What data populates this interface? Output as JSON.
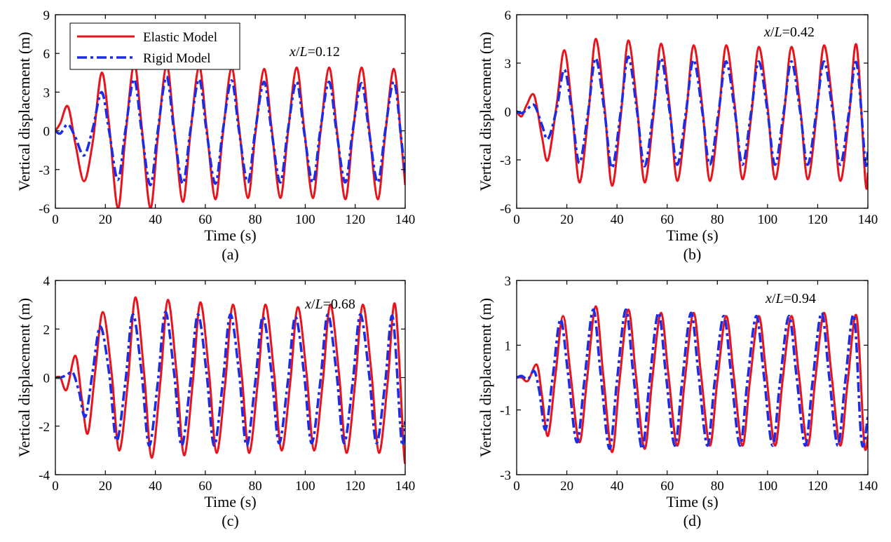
{
  "chart_data": [
    {
      "type": "line",
      "panel_label": "(a)",
      "annotation": {
        "var": "x",
        "slash": "/",
        "ref": "L",
        "value": "=0.12"
      },
      "xlabel": "Time (s)",
      "ylabel": "Vertical displacement (m)",
      "xlim": [
        0,
        140
      ],
      "ylim": [
        -6,
        9
      ],
      "xticks": [
        0,
        20,
        40,
        60,
        80,
        100,
        120,
        140
      ],
      "yticks": [
        -6,
        -3,
        0,
        3,
        6,
        9
      ],
      "legend": {
        "placement": "top-left",
        "entries": [
          "Elastic Model",
          "Rigid Model"
        ]
      },
      "series": [
        {
          "name": "Elastic Model",
          "color": "#e8141b",
          "dash": "solid",
          "x": [
            0,
            2,
            5,
            8,
            11.5,
            15,
            18.5,
            21.5,
            25,
            28,
            31.5,
            34.5,
            38,
            41,
            44.5,
            47.5,
            51,
            54,
            57.5,
            60.5,
            64,
            67,
            70.5,
            73.5,
            77,
            80,
            83.5,
            86.5,
            90,
            93,
            96.5,
            99.5,
            103,
            106,
            109.5,
            112.5,
            116,
            119,
            122.5,
            125.5,
            129,
            132,
            135.5,
            138.5,
            140
          ],
          "y": [
            0,
            0.6,
            1.9,
            -1.0,
            -3.9,
            -0.8,
            4.5,
            0.5,
            -6.0,
            -0.5,
            5.2,
            0.4,
            -6.0,
            -0.5,
            5.1,
            0.3,
            -5.5,
            -0.3,
            5.0,
            0.3,
            -5.3,
            -0.3,
            4.9,
            0.3,
            -5.2,
            -0.3,
            4.8,
            0.3,
            -5.2,
            -0.3,
            4.9,
            0.3,
            -5.2,
            -0.3,
            4.9,
            0.3,
            -5.3,
            -0.3,
            4.9,
            0.3,
            -5.3,
            -0.3,
            4.8,
            -1.0,
            -4.2
          ]
        },
        {
          "name": "Rigid Model",
          "color": "#1b2de6",
          "dash": "dashdot",
          "x": [
            0,
            2,
            5,
            8,
            11.5,
            15,
            18.5,
            21.5,
            25,
            28,
            31.5,
            34.5,
            38,
            41,
            44.5,
            47.5,
            51,
            54,
            57.5,
            60.5,
            64,
            67,
            70.5,
            73.5,
            77,
            80,
            83.5,
            86.5,
            90,
            93,
            96.5,
            99.5,
            103,
            106,
            109.5,
            112.5,
            116,
            119,
            122.5,
            125.5,
            129,
            132,
            135.5,
            138.5,
            140
          ],
          "y": [
            0,
            -0.2,
            0.5,
            -0.5,
            -1.9,
            0.2,
            3.0,
            0.0,
            -3.8,
            0.0,
            4.0,
            0.0,
            -4.2,
            0.0,
            4.2,
            0.0,
            -4.1,
            0.0,
            4.0,
            0.0,
            -4.1,
            0.0,
            3.9,
            0.0,
            -4.0,
            0.0,
            3.8,
            0.0,
            -4.0,
            0.0,
            3.8,
            0.0,
            -4.0,
            0.0,
            3.8,
            0.0,
            -4.0,
            0.0,
            3.7,
            0.0,
            -4.0,
            0.0,
            3.8,
            -0.8,
            -3.3
          ]
        }
      ]
    },
    {
      "type": "line",
      "panel_label": "(b)",
      "annotation": {
        "var": "x",
        "slash": "/",
        "ref": "L",
        "value": "=0.42"
      },
      "xlabel": "Time (s)",
      "ylabel": "Vertical displacement (m)",
      "xlim": [
        0,
        140
      ],
      "ylim": [
        -6,
        6
      ],
      "xticks": [
        0,
        20,
        40,
        60,
        80,
        100,
        120,
        140
      ],
      "yticks": [
        -6,
        -3,
        0,
        3,
        6
      ],
      "series": [
        {
          "name": "Elastic Model",
          "color": "#e8141b",
          "dash": "solid",
          "x": [
            0,
            2,
            4,
            7,
            10,
            12.5,
            16,
            19,
            22,
            25,
            28.5,
            31.5,
            35,
            38,
            41.5,
            44.5,
            48,
            51,
            54.5,
            57.5,
            61,
            64,
            67.5,
            70.5,
            74,
            77,
            80.5,
            83.5,
            87,
            90,
            93.5,
            96.5,
            100,
            103,
            106.5,
            109.5,
            113,
            116,
            119.5,
            122.5,
            126,
            129,
            132.5,
            135.5,
            139,
            140
          ],
          "y": [
            0,
            -0.3,
            0.4,
            1.0,
            -1.5,
            -3.0,
            0.5,
            3.8,
            0.3,
            -4.4,
            -0.3,
            4.5,
            0.3,
            -4.6,
            -0.3,
            4.4,
            0.3,
            -4.4,
            -0.3,
            4.2,
            0.3,
            -4.3,
            -0.3,
            4.1,
            0.3,
            -4.3,
            -0.3,
            4.1,
            0.3,
            -4.2,
            -0.3,
            4.0,
            0.3,
            -4.2,
            -0.3,
            4.0,
            0.3,
            -4.2,
            -0.3,
            4.1,
            0.3,
            -4.3,
            -0.3,
            4.1,
            -4.3,
            -3.8
          ]
        },
        {
          "name": "Rigid Model",
          "color": "#1b2de6",
          "dash": "dashdot",
          "x": [
            0,
            2,
            4,
            7,
            10,
            12.5,
            16,
            19,
            22,
            25,
            28.5,
            31.5,
            35,
            38,
            41.5,
            44.5,
            48,
            51,
            54.5,
            57.5,
            61,
            64,
            67.5,
            70.5,
            74,
            77,
            80.5,
            83.5,
            87,
            90,
            93.5,
            96.5,
            100,
            103,
            106.5,
            109.5,
            113,
            116,
            119.5,
            122.5,
            126,
            129,
            132.5,
            135.5,
            139,
            140
          ],
          "y": [
            0,
            -0.1,
            0.1,
            0.4,
            -0.8,
            -1.7,
            0.2,
            2.6,
            0.0,
            -3.2,
            0.0,
            3.3,
            0.0,
            -3.5,
            0.0,
            3.4,
            0.0,
            -3.4,
            0.0,
            3.3,
            0.0,
            -3.3,
            0.0,
            3.2,
            0.0,
            -3.3,
            0.0,
            3.1,
            0.0,
            -3.3,
            0.0,
            3.1,
            0.0,
            -3.3,
            0.0,
            3.1,
            0.0,
            -3.3,
            0.0,
            3.1,
            0.0,
            -3.3,
            0.0,
            3.0,
            -3.2,
            -2.5
          ]
        }
      ]
    },
    {
      "type": "line",
      "panel_label": "(c)",
      "annotation": {
        "var": "x",
        "slash": "/",
        "ref": "L",
        "value": "=0.68"
      },
      "xlabel": "Time (s)",
      "ylabel": "Vertical displacement (m)",
      "xlim": [
        0,
        140
      ],
      "ylim": [
        -4,
        4
      ],
      "xticks": [
        0,
        20,
        40,
        60,
        80,
        100,
        120,
        140
      ],
      "yticks": [
        -4,
        -2,
        0,
        2,
        4
      ],
      "series": [
        {
          "name": "Elastic Model",
          "color": "#e8141b",
          "dash": "solid",
          "x": [
            0,
            2,
            4.5,
            8,
            10.5,
            13,
            16,
            19,
            22.5,
            25.5,
            29,
            32,
            35.5,
            38.5,
            42,
            45,
            48.5,
            51.5,
            55,
            58,
            61.5,
            64.5,
            68,
            71,
            74.5,
            77.5,
            81,
            84,
            87.5,
            90.5,
            94,
            97,
            100.5,
            103.5,
            107,
            110,
            113.5,
            116.5,
            120,
            123,
            126.5,
            129.5,
            133,
            136,
            139.5,
            140
          ],
          "y": [
            0,
            0,
            -0.5,
            0.9,
            -0.8,
            -2.3,
            0.3,
            2.7,
            0.2,
            -3.0,
            -0.2,
            3.3,
            0.2,
            -3.3,
            -0.2,
            3.2,
            0.2,
            -3.2,
            -0.2,
            3.1,
            0.2,
            -3.1,
            -0.2,
            3.0,
            0.2,
            -3.1,
            -0.2,
            3.0,
            0.2,
            -3.0,
            -0.2,
            2.9,
            0.2,
            -3.0,
            -0.2,
            3.0,
            0.2,
            -3.1,
            -0.2,
            3.0,
            0.2,
            -3.1,
            -0.2,
            3.0,
            -3.1,
            -3.0
          ]
        },
        {
          "name": "Rigid Model",
          "color": "#1b2de6",
          "dash": "dashdot",
          "x": [
            0,
            2,
            4.5,
            7,
            9.5,
            12,
            15,
            18,
            21.5,
            24.5,
            28,
            31,
            34.5,
            37.5,
            41,
            44,
            47.5,
            50.5,
            54,
            57,
            60.5,
            63.5,
            67,
            70,
            73.5,
            76.5,
            80,
            83,
            86.5,
            89.5,
            93,
            96,
            99.5,
            102.5,
            106,
            109,
            112.5,
            115.5,
            119,
            122,
            125.5,
            128.5,
            132,
            135,
            138.5,
            140
          ],
          "y": [
            0,
            0,
            0.1,
            0.2,
            -0.6,
            -1.6,
            0.3,
            2.1,
            0.2,
            -2.6,
            -0.2,
            2.6,
            0.2,
            -2.8,
            -0.2,
            2.7,
            0.2,
            -2.8,
            -0.2,
            2.6,
            0.2,
            -2.8,
            -0.2,
            2.6,
            0.2,
            -2.8,
            -0.2,
            2.5,
            0.2,
            -2.7,
            -0.2,
            2.5,
            0.2,
            -2.7,
            -0.2,
            2.6,
            0.2,
            -2.7,
            -0.2,
            2.6,
            0.2,
            -2.7,
            -0.2,
            2.5,
            -2.6,
            -1.8
          ]
        }
      ]
    },
    {
      "type": "line",
      "panel_label": "(d)",
      "annotation": {
        "var": "x",
        "slash": "/",
        "ref": "L",
        "value": "=0.94"
      },
      "xlabel": "Time (s)",
      "ylabel": "Vertical displacement (m)",
      "xlim": [
        0,
        140
      ],
      "ylim": [
        -3,
        3
      ],
      "xticks": [
        0,
        20,
        40,
        60,
        80,
        100,
        120,
        140
      ],
      "yticks": [
        -3,
        -1,
        1,
        3
      ],
      "series": [
        {
          "name": "Elastic Model",
          "color": "#e8141b",
          "dash": "solid",
          "x": [
            0,
            2,
            4.5,
            8,
            10,
            12.5,
            15.5,
            18.5,
            21.5,
            25,
            28,
            31.5,
            34.5,
            38,
            41,
            44.5,
            47.5,
            51,
            54,
            57.5,
            60.5,
            64,
            67,
            70.5,
            73.5,
            77,
            80,
            83.5,
            86.5,
            90,
            93,
            96.5,
            99.5,
            103,
            106,
            109.5,
            112.5,
            116,
            119,
            122.5,
            125.5,
            129,
            132,
            135.5,
            138.5,
            140
          ],
          "y": [
            0,
            0,
            -0.1,
            0.4,
            -0.5,
            -1.8,
            0.1,
            1.9,
            0.1,
            -2.0,
            -0.1,
            2.2,
            0.1,
            -2.3,
            -0.1,
            2.1,
            0.1,
            -2.2,
            -0.1,
            2.0,
            0.1,
            -2.1,
            -0.1,
            2.0,
            0.1,
            -2.1,
            -0.1,
            1.9,
            0.1,
            -2.1,
            -0.1,
            1.9,
            0.1,
            -2.1,
            -0.1,
            1.9,
            0.1,
            -2.1,
            -0.1,
            2.0,
            0.1,
            -2.1,
            -0.1,
            1.9,
            -2.0,
            -1.8
          ]
        },
        {
          "name": "Rigid Model",
          "color": "#1b2de6",
          "dash": "dashdot",
          "x": [
            0,
            2,
            4.5,
            7,
            9,
            11.5,
            14.5,
            17.5,
            20.5,
            24,
            27,
            30.5,
            33.5,
            37,
            40,
            43.5,
            46.5,
            50,
            53,
            56.5,
            59.5,
            63,
            66,
            69.5,
            72.5,
            76,
            79,
            82.5,
            85.5,
            89,
            92,
            95.5,
            98.5,
            102,
            105,
            108.5,
            111.5,
            115,
            118,
            121.5,
            124.5,
            128,
            131,
            134.5,
            137.5,
            140
          ],
          "y": [
            0,
            0.05,
            -0.05,
            0.2,
            -0.4,
            -1.6,
            0.1,
            1.8,
            0.1,
            -2.0,
            -0.1,
            2.1,
            0.1,
            -2.2,
            -0.1,
            2.1,
            0.1,
            -2.2,
            -0.1,
            2.0,
            0.1,
            -2.1,
            -0.1,
            2.0,
            0.1,
            -2.1,
            -0.1,
            1.9,
            0.1,
            -2.1,
            -0.1,
            1.9,
            0.1,
            -2.1,
            -0.1,
            1.9,
            0.1,
            -2.1,
            -0.1,
            2.0,
            0.1,
            -2.1,
            -0.1,
            1.9,
            -2.0,
            -1.2
          ]
        }
      ]
    }
  ]
}
